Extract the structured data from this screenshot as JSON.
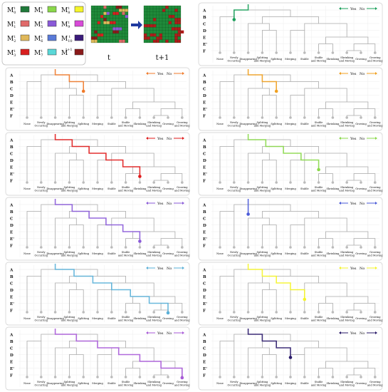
{
  "legend": {
    "entries": [
      {
        "sym": "M",
        "sub": "0",
        "sup": "t",
        "color": "#1f7a3a"
      },
      {
        "sym": "M",
        "sub": "1",
        "sup": "t",
        "color": "#e06a6a"
      },
      {
        "sym": "M",
        "sub": "2",
        "sup": "t",
        "color": "#e0b85a"
      },
      {
        "sym": "M",
        "sub": "3",
        "sup": "t",
        "color": "#d81f1f"
      },
      {
        "sym": "M",
        "sub": "4",
        "sup": "t",
        "color": "#8ad84a"
      },
      {
        "sym": "M",
        "sub": "5",
        "sup": "t",
        "color": "#8a5ad8"
      },
      {
        "sym": "M",
        "sub": "6",
        "sup": "t",
        "color": "#5a7ad8"
      },
      {
        "sym": "M",
        "sub": "7",
        "sup": "t",
        "color": "#5ad8d8"
      },
      {
        "sym": "M",
        "sub": "8",
        "sup": "t",
        "color": "#f5f52a"
      },
      {
        "sym": "M",
        "sub": "9",
        "sup": "t",
        "color": "#d84ad8"
      },
      {
        "sym": "M",
        "sub": "10",
        "sup": "t",
        "color": "#3a1a7a"
      },
      {
        "sym": "M",
        "sub": "",
        "sup": "t+1",
        "color": "#8a1a1a"
      }
    ],
    "time_t": "t",
    "time_t1": "t+1"
  },
  "tree": {
    "rows": [
      "A",
      "B",
      "C",
      "D",
      "E",
      "E'",
      "F"
    ],
    "leaves": [
      "None",
      "Newly\nOccurring",
      "Disappearing",
      "Splitting\nand Merging",
      "Splitting",
      "Merging",
      "Stable",
      "Stable\nand Moving",
      "Shrinking",
      "Shrinking\nand Moving",
      "Growing",
      "Growing\nand Moving"
    ],
    "legend_yes": "Yes",
    "legend_no": "No"
  },
  "panels": [
    {
      "color": "#1aa05a",
      "leaf": 1,
      "path": "B",
      "side": "left"
    },
    {
      "color": "#f07a2a",
      "leaf": 4,
      "path": "D",
      "side": "left"
    },
    {
      "color": "#f0a020",
      "leaf": 4,
      "path": "D",
      "side": "left2"
    },
    {
      "color": "#e01a1a",
      "leaf": 8,
      "path": "F",
      "side": "right"
    },
    {
      "color": "#8ad84a",
      "leaf": 7,
      "path": "F",
      "side": "right2"
    },
    {
      "color": "#8a5ad8",
      "leaf": 8,
      "path": "F",
      "side": "right"
    },
    {
      "color": "#4a5ad8",
      "leaf": 2,
      "path": "B",
      "side": "left3"
    },
    {
      "color": "#5ab0d8",
      "leaf": 10,
      "path": "F",
      "side": "right3"
    },
    {
      "color": "#f5f52a",
      "leaf": 6,
      "path": "F",
      "side": "right4"
    },
    {
      "color": "#a85ad8",
      "leaf": 11,
      "path": "F",
      "side": "right5"
    },
    {
      "color": "#2a1a6a",
      "leaf": 5,
      "path": "D",
      "side": "mid"
    }
  ]
}
